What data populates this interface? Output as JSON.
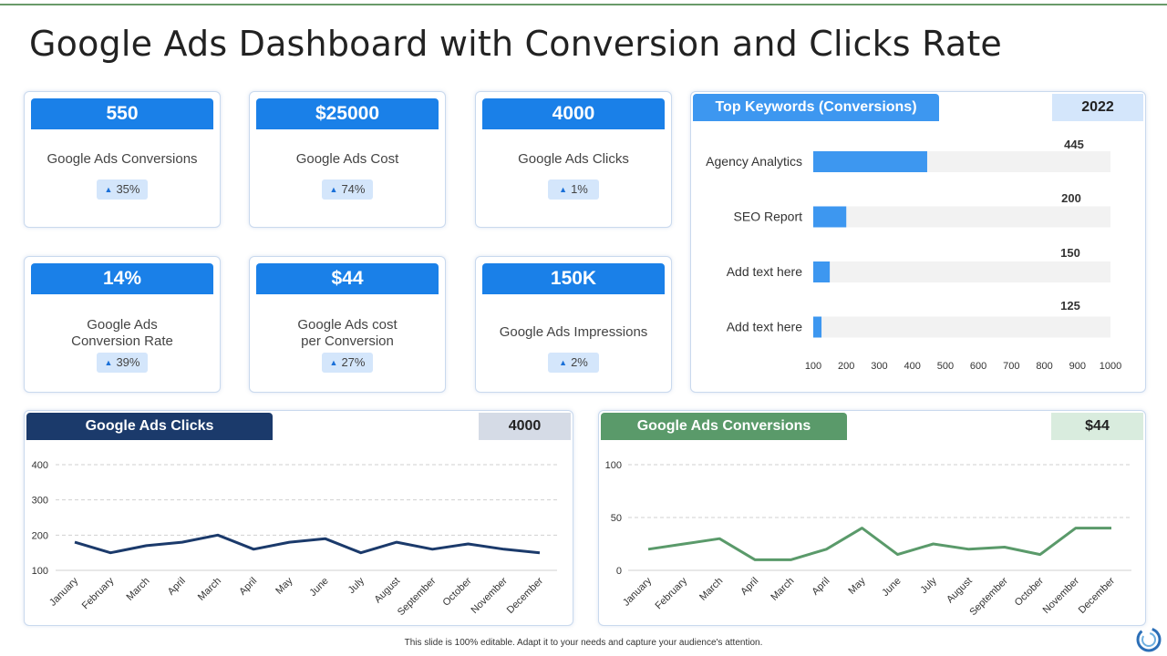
{
  "title": "Google Ads Dashboard with Conversion and Clicks Rate",
  "kpis": [
    {
      "value": "550",
      "label": "Google Ads Conversions",
      "change": "35%"
    },
    {
      "value": "$25000",
      "label": "Google Ads Cost",
      "change": "74%"
    },
    {
      "value": "4000",
      "label": "Google Ads Clicks",
      "change": "1%"
    },
    {
      "value": "14%",
      "label_line1": "Google Ads",
      "label_line2": "Conversion Rate",
      "change": "39%"
    },
    {
      "value": "$44",
      "label_line1": "Google Ads cost",
      "label_line2": "per Conversion",
      "change": "27%"
    },
    {
      "value": "150K",
      "label": "Google Ads Impressions",
      "change": "2%"
    }
  ],
  "keywords_panel": {
    "tab": "Top Keywords (Conversions)",
    "tag": "2022"
  },
  "clicks_panel": {
    "tab": "Google Ads Clicks",
    "tag": "4000"
  },
  "conversions_panel": {
    "tab": "Google Ads Conversions",
    "tag": "$44"
  },
  "colors": {
    "kpi_blue": "#1a80e8",
    "bar_blue": "#3d97f0",
    "clicks_navy": "#1b3a6b",
    "conv_green": "#5a9a6a"
  },
  "chart_data": [
    {
      "type": "bar",
      "orientation": "horizontal",
      "categories": [
        "Agency Analytics",
        "SEO Report",
        "Add text here",
        "Add text here"
      ],
      "values": [
        445,
        200,
        150,
        125
      ],
      "xlim": [
        100,
        1000
      ],
      "xticks": [
        100,
        200,
        300,
        400,
        500,
        600,
        700,
        800,
        900,
        1000
      ]
    },
    {
      "type": "line",
      "categories": [
        "January",
        "February",
        "March",
        "April",
        "March",
        "April",
        "May",
        "June",
        "July",
        "August",
        "September",
        "October",
        "November",
        "December"
      ],
      "values": [
        180,
        150,
        170,
        180,
        200,
        160,
        180,
        190,
        150,
        180,
        160,
        175,
        160,
        150
      ],
      "ylim": [
        100,
        400
      ],
      "yticks": [
        100,
        200,
        300,
        400
      ],
      "grid": true
    },
    {
      "type": "line",
      "categories": [
        "January",
        "February",
        "March",
        "April",
        "March",
        "April",
        "May",
        "June",
        "July",
        "August",
        "September",
        "October",
        "November",
        "December"
      ],
      "values": [
        20,
        25,
        30,
        10,
        10,
        20,
        40,
        15,
        25,
        20,
        22,
        15,
        40,
        40
      ],
      "ylim": [
        0,
        100
      ],
      "yticks": [
        0,
        50,
        100
      ],
      "grid": true
    }
  ],
  "footer": "This slide is 100% editable.  Adapt it to your needs and capture your audience's attention."
}
